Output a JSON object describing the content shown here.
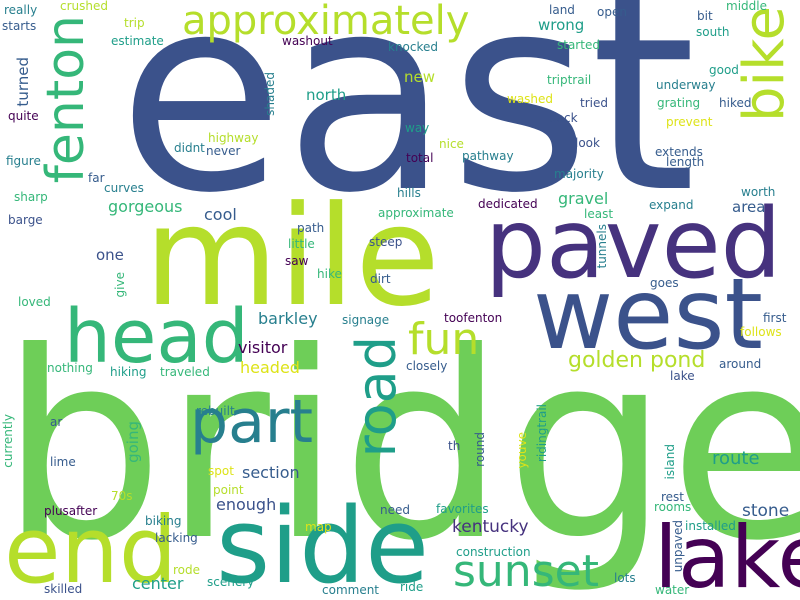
{
  "palette": {
    "dark_purple": "#46327e",
    "indigo": "#440154",
    "blue": "#365c8d",
    "slate": "#3b528b",
    "teal": "#277f8e",
    "cyan": "#1f9e89",
    "green": "#35b779",
    "lime": "#6ece58",
    "yellow_green": "#b5de2b",
    "yellow": "#dde318",
    "gold": "#fde725"
  },
  "words": [
    {
      "text": "east"
    },
    {
      "text": "bridge"
    },
    {
      "text": "mile"
    },
    {
      "text": "paved"
    },
    {
      "text": "west"
    },
    {
      "text": "side"
    },
    {
      "text": "head"
    },
    {
      "text": "end"
    },
    {
      "text": "lake"
    },
    {
      "text": "fenton"
    },
    {
      "text": "bike"
    },
    {
      "text": "part"
    },
    {
      "text": "road"
    },
    {
      "text": "approximately"
    },
    {
      "text": "sunset"
    },
    {
      "text": "fun"
    },
    {
      "text": "golden pond"
    },
    {
      "text": "route"
    },
    {
      "text": "kentucky"
    },
    {
      "text": "stone"
    },
    {
      "text": "barkley"
    },
    {
      "text": "section"
    },
    {
      "text": "visitor"
    },
    {
      "text": "enough"
    },
    {
      "text": "center"
    },
    {
      "text": "headed"
    },
    {
      "text": "gorgeous"
    },
    {
      "text": "gravel"
    },
    {
      "text": "cool"
    },
    {
      "text": "area"
    },
    {
      "text": "north"
    },
    {
      "text": "one"
    },
    {
      "text": "wrong"
    },
    {
      "text": "new"
    },
    {
      "text": "turned"
    },
    {
      "text": "going"
    },
    {
      "text": "crushed"
    },
    {
      "text": "trip"
    },
    {
      "text": "estimate"
    },
    {
      "text": "really"
    },
    {
      "text": "starts"
    },
    {
      "text": "land"
    },
    {
      "text": "open"
    },
    {
      "text": "bit"
    },
    {
      "text": "middle"
    },
    {
      "text": "south"
    },
    {
      "text": "washout"
    },
    {
      "text": "knocked"
    },
    {
      "text": "started"
    },
    {
      "text": "good"
    },
    {
      "text": "triptrail"
    },
    {
      "text": "underway"
    },
    {
      "text": "washed"
    },
    {
      "text": "tried"
    },
    {
      "text": "grating"
    },
    {
      "text": "hiked"
    },
    {
      "text": "quite"
    },
    {
      "text": "shaded"
    },
    {
      "text": "back"
    },
    {
      "text": "prevent"
    },
    {
      "text": "way"
    },
    {
      "text": "highway"
    },
    {
      "text": "didnt"
    },
    {
      "text": "never"
    },
    {
      "text": "nice"
    },
    {
      "text": "look"
    },
    {
      "text": "extends"
    },
    {
      "text": "length"
    },
    {
      "text": "figure"
    },
    {
      "text": "total"
    },
    {
      "text": "pathway"
    },
    {
      "text": "far"
    },
    {
      "text": "curves"
    },
    {
      "text": "majority"
    },
    {
      "text": "sharp"
    },
    {
      "text": "hills"
    },
    {
      "text": "worth"
    },
    {
      "text": "barge"
    },
    {
      "text": "approximate"
    },
    {
      "text": "dedicated"
    },
    {
      "text": "least"
    },
    {
      "text": "expand"
    },
    {
      "text": "path"
    },
    {
      "text": "little"
    },
    {
      "text": "steep"
    },
    {
      "text": "saw"
    },
    {
      "text": "tunnels"
    },
    {
      "text": "give"
    },
    {
      "text": "hike"
    },
    {
      "text": "dirt"
    },
    {
      "text": "goes"
    },
    {
      "text": "loved"
    },
    {
      "text": "signage"
    },
    {
      "text": "toofenton"
    },
    {
      "text": "first"
    },
    {
      "text": "follows"
    },
    {
      "text": "nothing"
    },
    {
      "text": "hiking"
    },
    {
      "text": "traveled"
    },
    {
      "text": "closely"
    },
    {
      "text": "around"
    },
    {
      "text": "lake"
    },
    {
      "text": "rebuilt"
    },
    {
      "text": "ar"
    },
    {
      "text": "currently"
    },
    {
      "text": "lime"
    },
    {
      "text": "th"
    },
    {
      "text": "round"
    },
    {
      "text": "youve"
    },
    {
      "text": "ridingtrail"
    },
    {
      "text": "island"
    },
    {
      "text": "spot"
    },
    {
      "text": "point"
    },
    {
      "text": "70s"
    },
    {
      "text": "rest"
    },
    {
      "text": "rooms"
    },
    {
      "text": "plusafter"
    },
    {
      "text": "need"
    },
    {
      "text": "favorites"
    },
    {
      "text": "installed"
    },
    {
      "text": "biking"
    },
    {
      "text": "map"
    },
    {
      "text": "lacking"
    },
    {
      "text": "construction"
    },
    {
      "text": "unpaved"
    },
    {
      "text": "rode"
    },
    {
      "text": "scenery"
    },
    {
      "text": "lots"
    },
    {
      "text": "skilled"
    },
    {
      "text": "comment"
    },
    {
      "text": "ride"
    },
    {
      "text": "water"
    }
  ]
}
